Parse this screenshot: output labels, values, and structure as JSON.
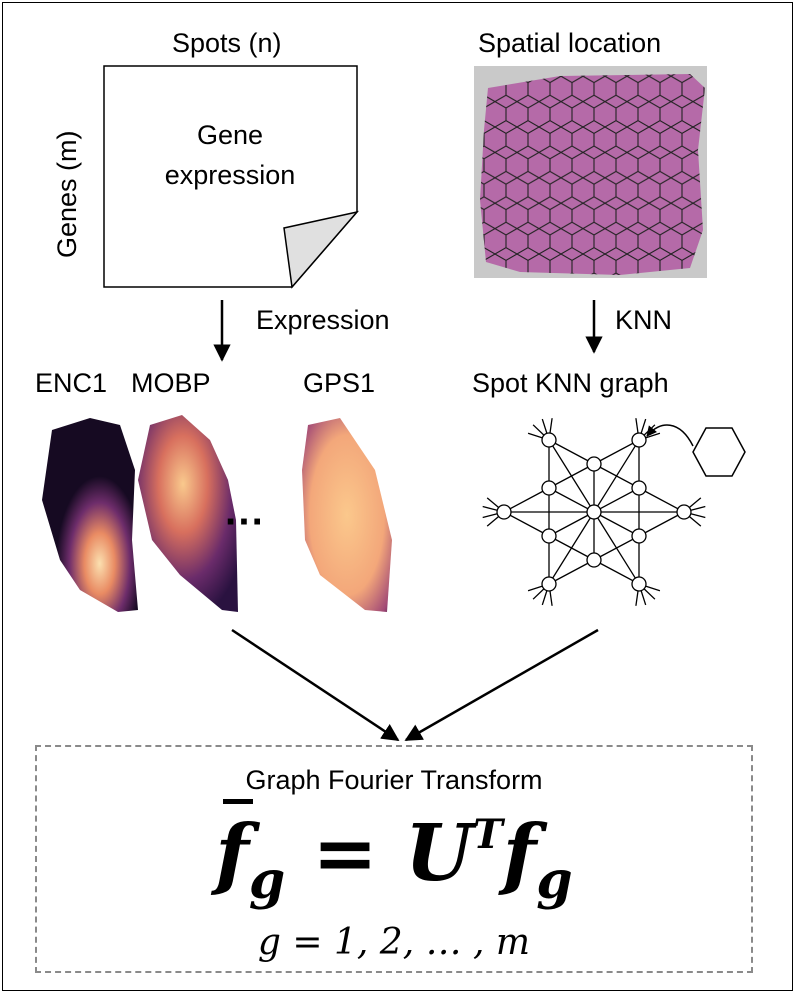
{
  "labels": {
    "spots": "Spots (n)",
    "genes": "Genes (m)",
    "gene_expression_line1": "Gene",
    "gene_expression_line2": "expression",
    "spatial_location": "Spatial location",
    "expression": "Expression",
    "knn": "KNN",
    "enc1": "ENC1",
    "mobp": "MOBP",
    "gps1": "GPS1",
    "ellipsis": "···",
    "spot_knn_graph": "Spot KNN graph"
  },
  "gft": {
    "title": "Graph Fourier Transform",
    "formula_lhs": "f",
    "formula_lhs_sub": "g",
    "formula_eq": " = ",
    "formula_u": "U",
    "formula_u_sup": "T",
    "formula_rhs": "f",
    "formula_rhs_sub": "g",
    "range": "g = 1, 2, … , m"
  },
  "colors": {
    "tissue": "#b46aa8",
    "slide_bg": "#c8c8c8",
    "heat_dark": "#1a0b2e",
    "heat_mid": "#8a3b7a",
    "heat_light": "#f7c08a",
    "dashed_border": "#8a8a8a"
  }
}
